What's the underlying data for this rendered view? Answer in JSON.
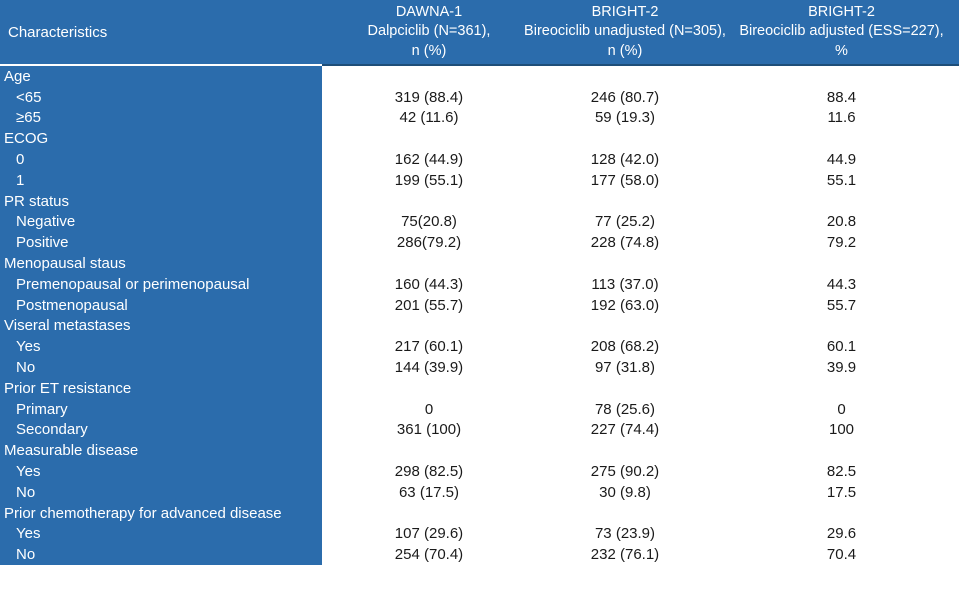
{
  "colors": {
    "header_blue": "#2B6CAC",
    "divider_navy": "#1E4E79",
    "body_text": "#1A1A1A",
    "header_text": "#FFFFFF"
  },
  "table": {
    "header": {
      "characteristics_label": "Characteristics",
      "columns": [
        {
          "line1": "DAWNA-1",
          "line2": "Dalpciclib (N=361),",
          "line3": "n (%)"
        },
        {
          "line1": "BRIGHT-2",
          "line2": "Bireociclib unadjusted (N=305),",
          "line3": "n (%)"
        },
        {
          "line1": "BRIGHT-2",
          "line2": "Bireociclib adjusted (ESS=227),",
          "line3": "%"
        }
      ]
    },
    "rows": [
      {
        "label": "Age",
        "indent": false,
        "values": [
          "",
          "",
          ""
        ]
      },
      {
        "label": "<65",
        "indent": true,
        "values": [
          "319 (88.4)",
          "246 (80.7)",
          "88.4"
        ]
      },
      {
        "label": "≥65",
        "indent": true,
        "values": [
          "42 (11.6)",
          "59 (19.3)",
          "11.6"
        ]
      },
      {
        "label": "ECOG",
        "indent": false,
        "values": [
          "",
          "",
          ""
        ]
      },
      {
        "label": "0",
        "indent": true,
        "values": [
          "162 (44.9)",
          "128 (42.0)",
          "44.9"
        ]
      },
      {
        "label": "1",
        "indent": true,
        "values": [
          "199 (55.1)",
          "177 (58.0)",
          "55.1"
        ]
      },
      {
        "label": "PR status",
        "indent": false,
        "values": [
          "",
          "",
          ""
        ]
      },
      {
        "label": "Negative",
        "indent": true,
        "values": [
          "75(20.8)",
          "77 (25.2)",
          "20.8"
        ]
      },
      {
        "label": "Positive",
        "indent": true,
        "values": [
          "286(79.2)",
          "228 (74.8)",
          "79.2"
        ]
      },
      {
        "label": "Menopausal staus",
        "indent": false,
        "values": [
          "",
          "",
          ""
        ]
      },
      {
        "label": "Premenopausal or perimenopausal",
        "indent": true,
        "values": [
          "160 (44.3)",
          "113 (37.0)",
          "44.3"
        ]
      },
      {
        "label": "Postmenopausal",
        "indent": true,
        "values": [
          "201 (55.7)",
          "192 (63.0)",
          "55.7"
        ]
      },
      {
        "label": "Viseral metastases",
        "indent": false,
        "values": [
          "",
          "",
          ""
        ]
      },
      {
        "label": "Yes",
        "indent": true,
        "values": [
          "217 (60.1)",
          "208 (68.2)",
          "60.1"
        ]
      },
      {
        "label": "No",
        "indent": true,
        "values": [
          "144 (39.9)",
          "97 (31.8)",
          "39.9"
        ]
      },
      {
        "label": "Prior ET resistance",
        "indent": false,
        "values": [
          "",
          "",
          ""
        ]
      },
      {
        "label": "Primary",
        "indent": true,
        "values": [
          "0",
          "78 (25.6)",
          "0"
        ]
      },
      {
        "label": "Secondary",
        "indent": true,
        "values": [
          "361 (100)",
          "227 (74.4)",
          "100"
        ]
      },
      {
        "label": "Measurable disease",
        "indent": false,
        "values": [
          "",
          "",
          ""
        ]
      },
      {
        "label": "Yes",
        "indent": true,
        "values": [
          "298 (82.5)",
          "275 (90.2)",
          "82.5"
        ]
      },
      {
        "label": "No",
        "indent": true,
        "values": [
          "63 (17.5)",
          "30 (9.8)",
          "17.5"
        ]
      },
      {
        "label": "Prior chemotherapy for advanced disease",
        "indent": false,
        "values": [
          "",
          "",
          ""
        ]
      },
      {
        "label": "Yes",
        "indent": true,
        "values": [
          "107 (29.6)",
          "73 (23.9)",
          "29.6"
        ]
      },
      {
        "label": "No",
        "indent": true,
        "values": [
          "254 (70.4)",
          "232 (76.1)",
          "70.4"
        ]
      }
    ]
  }
}
